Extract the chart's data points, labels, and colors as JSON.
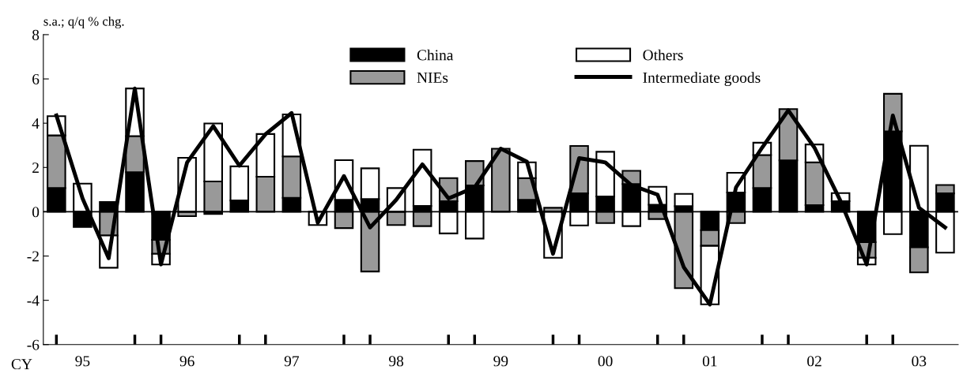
{
  "chart_data": {
    "type": "bar",
    "stacked": true,
    "ylabel": "s.a.; q/q % chg.",
    "xlabel": "CY",
    "categories": [
      null,
      "95",
      null,
      null,
      null,
      "96",
      null,
      null,
      null,
      "97",
      null,
      null,
      null,
      "98",
      null,
      null,
      null,
      "99",
      null,
      null,
      null,
      "00",
      null,
      null,
      null,
      "01",
      null,
      null,
      null,
      "02",
      null,
      null,
      null,
      "03",
      null
    ],
    "ylim": [
      -6,
      8
    ],
    "yticks": [
      -6,
      -4,
      -2,
      0,
      2,
      4,
      6,
      8
    ],
    "grid": false,
    "legend": "top",
    "ref_lines": [
      {
        "axis": "y",
        "value": 0,
        "color": "#000000"
      }
    ],
    "series": [
      {
        "name": "China",
        "color": "#000000",
        "values": [
          1.07,
          -0.69,
          0.44,
          1.79,
          -1.27,
          0,
          -0.1,
          0.51,
          0,
          0.63,
          0,
          0.54,
          0.57,
          0,
          0.26,
          0.48,
          1.19,
          0,
          0.54,
          0,
          0.83,
          0.69,
          1.25,
          0.32,
          0.25,
          -0.83,
          0.87,
          1.07,
          2.32,
          0.3,
          0.48,
          -1.37,
          3.63,
          -1.61,
          0.83
        ]
      },
      {
        "name": "NIEs",
        "color": "#999999",
        "values": [
          2.38,
          0,
          -1.07,
          1.63,
          -0.63,
          -0.2,
          1.37,
          0,
          1.58,
          1.87,
          null,
          -0.74,
          -2.7,
          -0.6,
          -0.65,
          1.04,
          1.1,
          2.85,
          0.98,
          0.18,
          2.14,
          -0.51,
          0.6,
          -0.33,
          -3.45,
          -0.71,
          -0.51,
          1.49,
          2.32,
          1.93,
          null,
          -0.71,
          1.7,
          -1.13,
          0.38
        ]
      },
      {
        "name": "Others",
        "color": "#ffffff",
        "values": [
          0.87,
          1.27,
          -1.46,
          2.15,
          -0.48,
          2.44,
          2.62,
          1.54,
          1.93,
          1.9,
          -0.6,
          1.79,
          1.39,
          1.07,
          2.54,
          -0.98,
          -1.21,
          0,
          0.71,
          -2.08,
          -0.62,
          2.02,
          -0.65,
          0.81,
          0.56,
          -2.64,
          0.89,
          0.56,
          0,
          0.81,
          0.36,
          -0.3,
          -1.01,
          2.98,
          -1.85
        ]
      },
      {
        "name": "Intermediate goods",
        "type": "line",
        "color": "#000000",
        "values": [
          4.35,
          0.6,
          -2.1,
          5.57,
          -2.38,
          2.23,
          3.87,
          2.08,
          3.5,
          4.46,
          -0.5,
          1.61,
          -0.71,
          0.54,
          2.14,
          0.6,
          1.1,
          2.85,
          2.26,
          -1.9,
          2.42,
          2.23,
          1.2,
          0.77,
          -2.5,
          -4.19,
          1.1,
          2.9,
          4.58,
          2.9,
          0.48,
          -2.38,
          4.35,
          0.18,
          -0.71
        ]
      }
    ]
  }
}
